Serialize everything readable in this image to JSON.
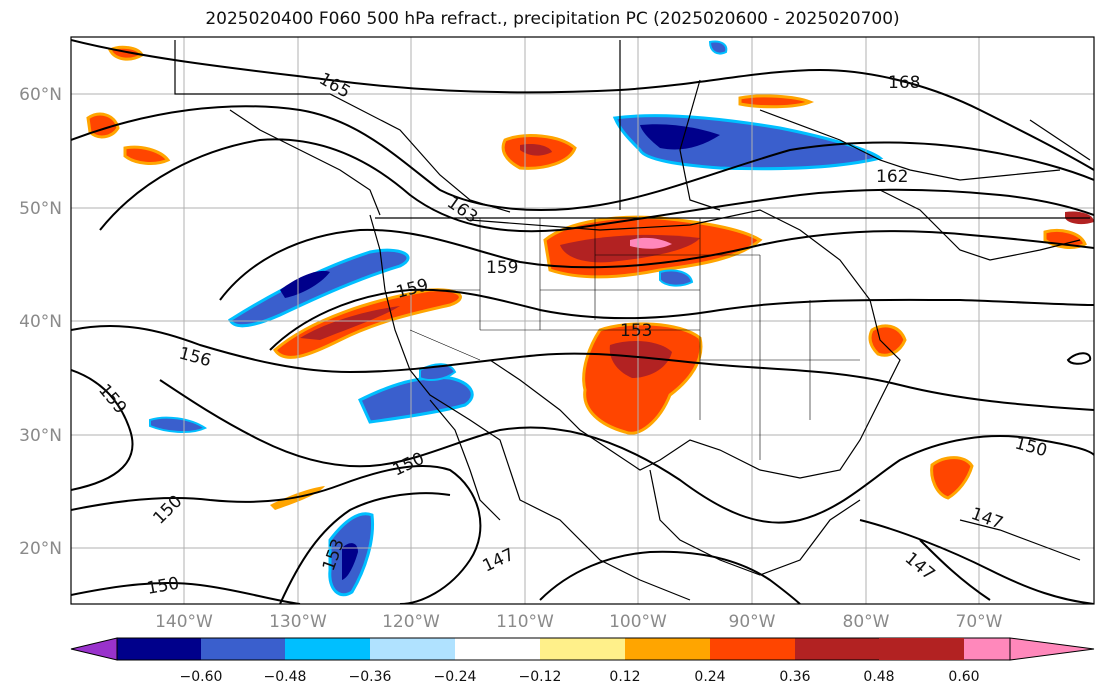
{
  "title": "2025020400 F060 500 hPa refract., precipitation PC (2025020600 - 2025020700)",
  "map": {
    "lat_labels": [
      "60°N",
      "50°N",
      "40°N",
      "30°N",
      "20°N"
    ],
    "lon_labels": [
      "140°W",
      "130°W",
      "120°W",
      "110°W",
      "100°W",
      "90°W",
      "80°W",
      "70°W"
    ],
    "contour_labels": [
      "165",
      "168",
      "162",
      "163",
      "159",
      "159",
      "153",
      "156",
      "159",
      "150",
      "150",
      "147",
      "150",
      "153",
      "147",
      "147",
      "150"
    ]
  },
  "colorbar": {
    "ticks": [
      "−0.60",
      "−0.48",
      "−0.36",
      "−0.24",
      "−0.12",
      "0.12",
      "0.24",
      "0.36",
      "0.48",
      "0.60"
    ],
    "colors": [
      "#9932cc",
      "#00008b",
      "#3a5fcd",
      "#00bfff",
      "#b0e2ff",
      "#ffffff",
      "#fff08a",
      "#ffa500",
      "#ff4500",
      "#b22222",
      "#ff88bb"
    ]
  }
}
